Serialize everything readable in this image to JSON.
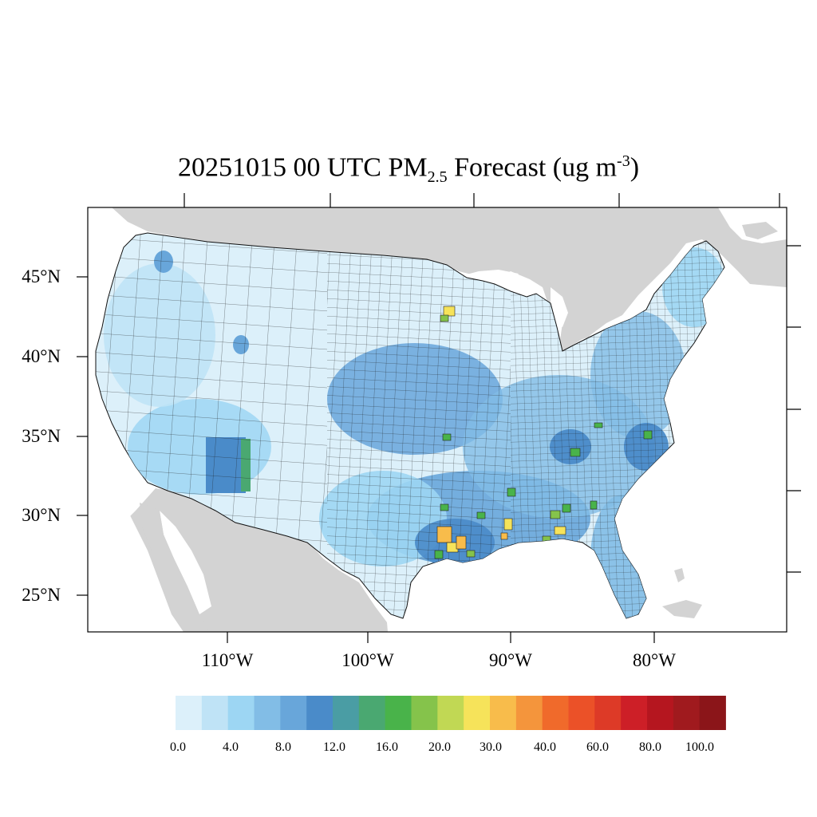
{
  "title": {
    "prefix": "20251015 00 UTC PM",
    "subscript": "2.5",
    "middle": " Forecast (ug m",
    "superscript": "-3",
    "suffix": ")"
  },
  "axes": {
    "lat_labels": [
      "45°N",
      "40°N",
      "35°N",
      "30°N",
      "25°N"
    ],
    "lon_labels": [
      "110°W",
      "100°W",
      "90°W",
      "80°W"
    ]
  },
  "colorbar": {
    "labels": [
      "0.0",
      "4.0",
      "8.0",
      "12.0",
      "16.0",
      "20.0",
      "30.0",
      "40.0",
      "60.0",
      "80.0",
      "100.0"
    ],
    "colors": [
      "#dcf0fa",
      "#bfe3f6",
      "#9dd6f3",
      "#82bde6",
      "#68a6da",
      "#4a8bc9",
      "#4a9da4",
      "#4aa871",
      "#49b34a",
      "#85c34b",
      "#c1d854",
      "#f6e35a",
      "#f8bc4b",
      "#f4953c",
      "#f06a2b",
      "#eb5128",
      "#dd3a27",
      "#cd1f27",
      "#b5161f",
      "#a01a1e",
      "#8b1519"
    ]
  },
  "map": {
    "land_color": "#d3d3d3",
    "water_color": "#ffffff",
    "hotspot_colors": [
      "#f6e35a",
      "#f8bc4b",
      "#85c34b",
      "#49b34a",
      "#f06a2b"
    ]
  }
}
